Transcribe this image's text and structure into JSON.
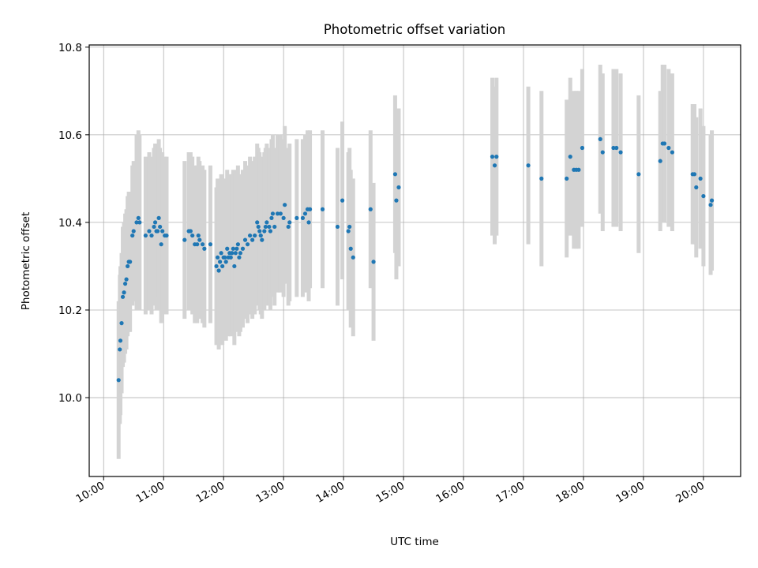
{
  "chart_data": {
    "type": "scatter",
    "title": "Photometric offset variation",
    "xlabel": "UTC time",
    "ylabel": "Photometric offset",
    "grid": true,
    "xlim": [
      9.76,
      20.62
    ],
    "ylim": [
      9.82,
      10.805
    ],
    "xticks": [
      {
        "v": 10,
        "label": "10:00"
      },
      {
        "v": 11,
        "label": "11:00"
      },
      {
        "v": 12,
        "label": "12:00"
      },
      {
        "v": 13,
        "label": "13:00"
      },
      {
        "v": 14,
        "label": "14:00"
      },
      {
        "v": 15,
        "label": "15:00"
      },
      {
        "v": 16,
        "label": "16:00"
      },
      {
        "v": 17,
        "label": "17:00"
      },
      {
        "v": 18,
        "label": "18:00"
      },
      {
        "v": 19,
        "label": "19:00"
      },
      {
        "v": 20,
        "label": "20:00"
      }
    ],
    "yticks": [
      {
        "v": 10.0,
        "label": "10.0"
      },
      {
        "v": 10.2,
        "label": "10.2"
      },
      {
        "v": 10.4,
        "label": "10.4"
      },
      {
        "v": 10.6,
        "label": "10.6"
      },
      {
        "v": 10.8,
        "label": "10.8"
      }
    ],
    "colors": {
      "points": "#1f77b4",
      "errorbars": "#d3d3d3",
      "grid": "#b0b0b0"
    },
    "points": [
      [
        10.25,
        10.04,
        0.18
      ],
      [
        10.27,
        10.11,
        0.17
      ],
      [
        10.28,
        10.13,
        0.17
      ],
      [
        10.3,
        10.17,
        0.16
      ],
      [
        10.32,
        10.23,
        0.16
      ],
      [
        10.34,
        10.24,
        0.16
      ],
      [
        10.36,
        10.26,
        0.16
      ],
      [
        10.38,
        10.27,
        0.16
      ],
      [
        10.4,
        10.3,
        0.16
      ],
      [
        10.42,
        10.31,
        0.16
      ],
      [
        10.44,
        10.31,
        0.16
      ],
      [
        10.48,
        10.37,
        0.16
      ],
      [
        10.5,
        10.38,
        0.16
      ],
      [
        10.55,
        10.4,
        0.2
      ],
      [
        10.58,
        10.41,
        0.2
      ],
      [
        10.6,
        10.4,
        0.2
      ],
      [
        10.7,
        10.37,
        0.18
      ],
      [
        10.76,
        10.38,
        0.18
      ],
      [
        10.8,
        10.37,
        0.18
      ],
      [
        10.84,
        10.39,
        0.18
      ],
      [
        10.86,
        10.4,
        0.18
      ],
      [
        10.88,
        10.38,
        0.18
      ],
      [
        10.9,
        10.38,
        0.18
      ],
      [
        10.92,
        10.41,
        0.18
      ],
      [
        10.94,
        10.39,
        0.18
      ],
      [
        10.96,
        10.35,
        0.18
      ],
      [
        10.98,
        10.38,
        0.18
      ],
      [
        11.02,
        10.37,
        0.18
      ],
      [
        11.05,
        10.37,
        0.18
      ],
      [
        11.35,
        10.36,
        0.18
      ],
      [
        11.42,
        10.38,
        0.18
      ],
      [
        11.45,
        10.38,
        0.18
      ],
      [
        11.48,
        10.37,
        0.18
      ],
      [
        11.52,
        10.35,
        0.18
      ],
      [
        11.56,
        10.35,
        0.18
      ],
      [
        11.58,
        10.37,
        0.18
      ],
      [
        11.6,
        10.36,
        0.18
      ],
      [
        11.65,
        10.35,
        0.18
      ],
      [
        11.68,
        10.34,
        0.18
      ],
      [
        11.78,
        10.35,
        0.18
      ],
      [
        11.88,
        10.3,
        0.18
      ],
      [
        11.9,
        10.32,
        0.18
      ],
      [
        11.92,
        10.29,
        0.18
      ],
      [
        11.94,
        10.31,
        0.18
      ],
      [
        11.96,
        10.33,
        0.18
      ],
      [
        11.98,
        10.3,
        0.18
      ],
      [
        12.0,
        10.32,
        0.18
      ],
      [
        12.02,
        10.32,
        0.18
      ],
      [
        12.04,
        10.31,
        0.18
      ],
      [
        12.06,
        10.34,
        0.18
      ],
      [
        12.08,
        10.32,
        0.18
      ],
      [
        12.1,
        10.33,
        0.18
      ],
      [
        12.12,
        10.32,
        0.18
      ],
      [
        12.14,
        10.33,
        0.18
      ],
      [
        12.16,
        10.34,
        0.18
      ],
      [
        12.18,
        10.3,
        0.18
      ],
      [
        12.2,
        10.33,
        0.18
      ],
      [
        12.22,
        10.34,
        0.18
      ],
      [
        12.24,
        10.35,
        0.18
      ],
      [
        12.26,
        10.32,
        0.18
      ],
      [
        12.28,
        10.33,
        0.18
      ],
      [
        12.32,
        10.34,
        0.18
      ],
      [
        12.36,
        10.36,
        0.18
      ],
      [
        12.4,
        10.35,
        0.18
      ],
      [
        12.44,
        10.37,
        0.18
      ],
      [
        12.48,
        10.36,
        0.18
      ],
      [
        12.52,
        10.37,
        0.18
      ],
      [
        12.56,
        10.4,
        0.18
      ],
      [
        12.58,
        10.39,
        0.18
      ],
      [
        12.6,
        10.38,
        0.18
      ],
      [
        12.62,
        10.37,
        0.18
      ],
      [
        12.64,
        10.36,
        0.18
      ],
      [
        12.68,
        10.38,
        0.18
      ],
      [
        12.7,
        10.39,
        0.18
      ],
      [
        12.72,
        10.4,
        0.18
      ],
      [
        12.76,
        10.39,
        0.18
      ],
      [
        12.78,
        10.38,
        0.18
      ],
      [
        12.8,
        10.41,
        0.18
      ],
      [
        12.82,
        10.42,
        0.18
      ],
      [
        12.85,
        10.39,
        0.18
      ],
      [
        12.9,
        10.42,
        0.18
      ],
      [
        12.95,
        10.42,
        0.18
      ],
      [
        13.0,
        10.41,
        0.18
      ],
      [
        13.02,
        10.44,
        0.18
      ],
      [
        13.08,
        10.39,
        0.18
      ],
      [
        13.1,
        10.4,
        0.18
      ],
      [
        13.22,
        10.41,
        0.18
      ],
      [
        13.32,
        10.41,
        0.18
      ],
      [
        13.36,
        10.42,
        0.18
      ],
      [
        13.4,
        10.43,
        0.18
      ],
      [
        13.42,
        10.4,
        0.18
      ],
      [
        13.44,
        10.43,
        0.18
      ],
      [
        13.65,
        10.43,
        0.18
      ],
      [
        13.9,
        10.39,
        0.18
      ],
      [
        13.98,
        10.45,
        0.18
      ],
      [
        14.08,
        10.38,
        0.18
      ],
      [
        14.1,
        10.39,
        0.18
      ],
      [
        14.12,
        10.34,
        0.18
      ],
      [
        14.16,
        10.32,
        0.18
      ],
      [
        14.45,
        10.43,
        0.18
      ],
      [
        14.5,
        10.31,
        0.18
      ],
      [
        14.86,
        10.51,
        0.18
      ],
      [
        14.88,
        10.45,
        0.18
      ],
      [
        14.92,
        10.48,
        0.18
      ],
      [
        16.48,
        10.55,
        0.18
      ],
      [
        16.52,
        10.53,
        0.18
      ],
      [
        16.55,
        10.55,
        0.18
      ],
      [
        17.08,
        10.53,
        0.18
      ],
      [
        17.3,
        10.5,
        0.2
      ],
      [
        17.72,
        10.5,
        0.18
      ],
      [
        17.78,
        10.55,
        0.18
      ],
      [
        17.84,
        10.52,
        0.18
      ],
      [
        17.88,
        10.52,
        0.18
      ],
      [
        17.92,
        10.52,
        0.18
      ],
      [
        17.98,
        10.57,
        0.18
      ],
      [
        18.28,
        10.59,
        0.17
      ],
      [
        18.32,
        10.56,
        0.18
      ],
      [
        18.5,
        10.57,
        0.18
      ],
      [
        18.55,
        10.57,
        0.18
      ],
      [
        18.62,
        10.56,
        0.18
      ],
      [
        18.92,
        10.51,
        0.18
      ],
      [
        19.28,
        10.54,
        0.16
      ],
      [
        19.32,
        10.58,
        0.18
      ],
      [
        19.35,
        10.58,
        0.18
      ],
      [
        19.42,
        10.57,
        0.18
      ],
      [
        19.48,
        10.56,
        0.18
      ],
      [
        19.82,
        10.51,
        0.16
      ],
      [
        19.85,
        10.51,
        0.16
      ],
      [
        19.88,
        10.48,
        0.16
      ],
      [
        19.95,
        10.5,
        0.16
      ],
      [
        20.0,
        10.46,
        0.16
      ],
      [
        20.12,
        10.44,
        0.16
      ],
      [
        20.14,
        10.45,
        0.16
      ]
    ]
  }
}
